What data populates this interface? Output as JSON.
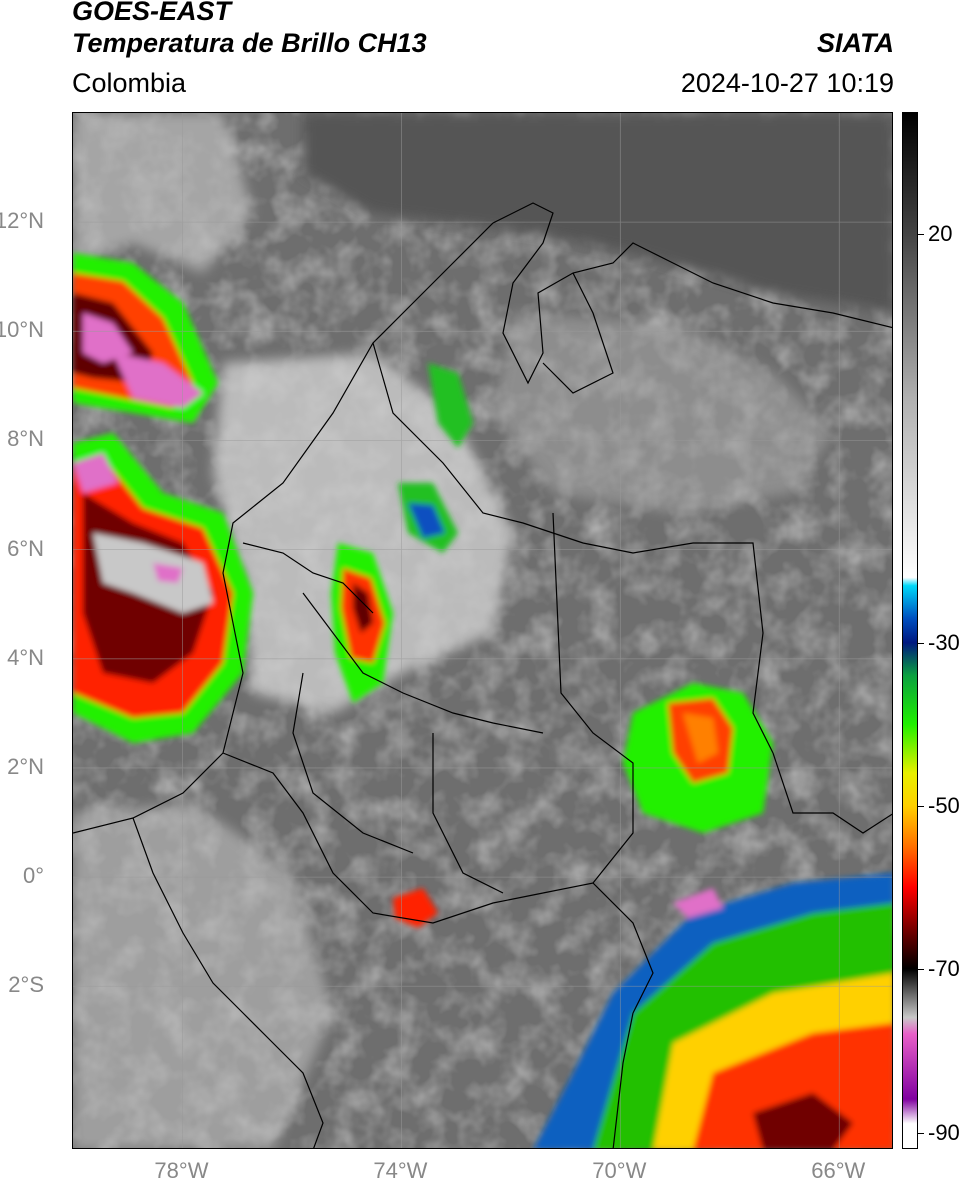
{
  "header": {
    "satellite": "GOES-EAST",
    "product": "Temperatura de Brillo CH13",
    "region": "Colombia",
    "source": "SIATA",
    "datetime": "2024-10-27 10:19"
  },
  "map": {
    "extent": {
      "lon_min": -80,
      "lon_max": -65,
      "lat_min": -5,
      "lat_max": 14
    },
    "lat_ticks": [
      {
        "value": 12,
        "label": "12°N"
      },
      {
        "value": 10,
        "label": "10°N"
      },
      {
        "value": 8,
        "label": "8°N"
      },
      {
        "value": 6,
        "label": "6°N"
      },
      {
        "value": 4,
        "label": "4°N"
      },
      {
        "value": 2,
        "label": "2°N"
      },
      {
        "value": 0,
        "label": "0°"
      },
      {
        "value": -2,
        "label": "2°S"
      }
    ],
    "lon_ticks": [
      {
        "value": -78,
        "label": "78°W"
      },
      {
        "value": -74,
        "label": "74°W"
      },
      {
        "value": -70,
        "label": "70°W"
      },
      {
        "value": -66,
        "label": "66°W"
      }
    ],
    "gridlines": true
  },
  "colorbar": {
    "min": -92,
    "max": 35,
    "ticks": [
      {
        "value": 20,
        "label": "20"
      },
      {
        "value": -30,
        "label": "-30"
      },
      {
        "value": -50,
        "label": "-50"
      },
      {
        "value": -70,
        "label": "-70"
      },
      {
        "value": -90,
        "label": "-90"
      }
    ],
    "stops": [
      {
        "value": 35,
        "color": "#000000"
      },
      {
        "value": 20,
        "color": "#444444"
      },
      {
        "value": 0,
        "color": "#b0b0b0"
      },
      {
        "value": -22,
        "color": "#ffffff"
      },
      {
        "value": -23,
        "color": "#00d8f8"
      },
      {
        "value": -27,
        "color": "#0050c0"
      },
      {
        "value": -30,
        "color": "#001880"
      },
      {
        "value": -34,
        "color": "#0aa040"
      },
      {
        "value": -40,
        "color": "#20f000"
      },
      {
        "value": -46,
        "color": "#e8f000"
      },
      {
        "value": -50,
        "color": "#ffd000"
      },
      {
        "value": -55,
        "color": "#ff7000"
      },
      {
        "value": -60,
        "color": "#ff0000"
      },
      {
        "value": -66,
        "color": "#600000"
      },
      {
        "value": -70,
        "color": "#000000"
      },
      {
        "value": -76,
        "color": "#c8c8c8"
      },
      {
        "value": -78,
        "color": "#e860c8"
      },
      {
        "value": -86,
        "color": "#8000a0"
      },
      {
        "value": -89,
        "color": "#ffffff"
      },
      {
        "value": -92,
        "color": "#ffffff"
      }
    ]
  },
  "colors": {
    "background_cloudfree": "#6e6e6e",
    "cold_cloud_core": "#e070c8",
    "coastline": "#000000",
    "gridline": "#9a9a9a"
  }
}
